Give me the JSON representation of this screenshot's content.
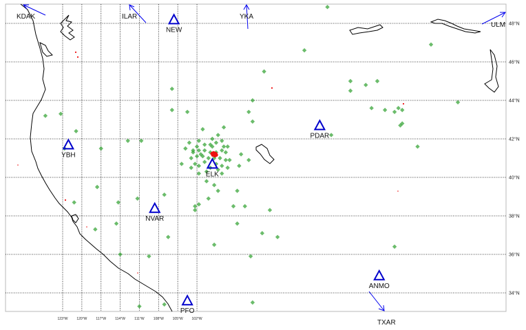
{
  "map": {
    "lat_ticks": [
      "48°N",
      "46°N",
      "44°N",
      "42°N",
      "40°N",
      "38°N",
      "36°N",
      "34°N"
    ],
    "lon_ticks": [
      "123°W",
      "120°W",
      "117°W",
      "114°W",
      "111°W",
      "108°W",
      "105°W",
      "102°W"
    ],
    "colors": {
      "grid": "#000000",
      "coastline": "#000000",
      "station_triangle": "#0000cc",
      "arrow": "#0000ee",
      "event_marker": "#2ca02c",
      "mainshock": "#ee1111"
    },
    "stations_on_map": [
      {
        "code": "NEW",
        "lon": -117.2,
        "lat": 48.2
      },
      {
        "code": "YBH",
        "lon": -122.7,
        "lat": 41.7
      },
      {
        "code": "ELK",
        "lon": -115.2,
        "lat": 40.7
      },
      {
        "code": "PDAR",
        "lon": -109.6,
        "lat": 42.7
      },
      {
        "code": "NVAR",
        "lon": -118.2,
        "lat": 38.4
      },
      {
        "code": "PFO",
        "lon": -116.5,
        "lat": 33.6
      },
      {
        "code": "ANMO",
        "lon": -106.5,
        "lat": 34.9
      }
    ],
    "offmap_stations": [
      {
        "code": "KDAK",
        "direction": "north-west"
      },
      {
        "code": "ILAR",
        "direction": "north-west"
      },
      {
        "code": "YKA",
        "direction": "north"
      },
      {
        "code": "ULM",
        "direction": "north-east"
      },
      {
        "code": "TXAR",
        "direction": "south-east"
      }
    ],
    "mainshock": {
      "lon": -115.1,
      "lat": 41.2
    },
    "events": [
      [
        -109.2,
        48.85
      ],
      [
        -110.4,
        46.6
      ],
      [
        -112.5,
        45.5
      ],
      [
        -113.1,
        44.0
      ],
      [
        -113.3,
        43.4
      ],
      [
        -113.1,
        42.9
      ],
      [
        -117.3,
        44.6
      ],
      [
        -117.3,
        43.5
      ],
      [
        -116.5,
        43.4
      ],
      [
        -115.7,
        42.5
      ],
      [
        -114.6,
        42.6
      ],
      [
        -114.9,
        42.2
      ],
      [
        -115.2,
        42.0
      ],
      [
        -116.0,
        41.6
      ],
      [
        -116.4,
        41.8
      ],
      [
        -115.9,
        41.9
      ],
      [
        -115.6,
        41.7
      ],
      [
        -115.3,
        41.7
      ],
      [
        -115.0,
        41.8
      ],
      [
        -114.7,
        41.9
      ],
      [
        -114.4,
        41.6
      ],
      [
        -116.6,
        41.5
      ],
      [
        -116.2,
        41.4
      ],
      [
        -115.9,
        41.4
      ],
      [
        -115.6,
        41.4
      ],
      [
        -115.3,
        41.3
      ],
      [
        -115.0,
        41.3
      ],
      [
        -114.7,
        41.4
      ],
      [
        -114.5,
        41.3
      ],
      [
        -116.3,
        41.0
      ],
      [
        -116.0,
        41.1
      ],
      [
        -115.7,
        41.1
      ],
      [
        -115.4,
        41.0
      ],
      [
        -115.1,
        41.0
      ],
      [
        -114.8,
        41.0
      ],
      [
        -114.5,
        40.9
      ],
      [
        -116.1,
        40.7
      ],
      [
        -115.9,
        40.6
      ],
      [
        -115.6,
        40.8
      ],
      [
        -115.3,
        40.5
      ],
      [
        -115.0,
        40.7
      ],
      [
        -114.7,
        40.6
      ],
      [
        -114.4,
        40.5
      ],
      [
        -116.3,
        40.5
      ],
      [
        -115.9,
        40.2
      ],
      [
        -115.5,
        40.3
      ],
      [
        -114.9,
        40.4
      ],
      [
        -114.7,
        40.2
      ],
      [
        -116.8,
        40.7
      ],
      [
        -116.2,
        41.3
      ],
      [
        -114.3,
        40.9
      ],
      [
        -114.6,
        41.6
      ],
      [
        -115.8,
        41.2
      ],
      [
        -115.2,
        41.6
      ],
      [
        -113.7,
        41.2
      ],
      [
        -113.3,
        40.9
      ],
      [
        -113.8,
        40.6
      ],
      [
        -115.5,
        39.8
      ],
      [
        -115.1,
        39.6
      ],
      [
        -114.9,
        39.3
      ],
      [
        -113.9,
        39.3
      ],
      [
        -114.1,
        38.5
      ],
      [
        -113.5,
        38.5
      ],
      [
        -115.4,
        38.9
      ],
      [
        -115.9,
        38.6
      ],
      [
        -116.1,
        38.5
      ],
      [
        -116.1,
        38.3
      ],
      [
        -117.7,
        39.1
      ],
      [
        -119.1,
        38.9
      ],
      [
        -120.1,
        38.7
      ],
      [
        -121.0,
        41.5
      ],
      [
        -122.3,
        42.4
      ],
      [
        -123.1,
        43.3
      ],
      [
        -122.4,
        38.7
      ],
      [
        -119.6,
        41.9
      ],
      [
        -118.9,
        41.9
      ],
      [
        -112.2,
        38.3
      ],
      [
        -113.9,
        37.6
      ],
      [
        -112.6,
        37.1
      ],
      [
        -111.8,
        36.9
      ],
      [
        -120.2,
        37.6
      ],
      [
        -120.0,
        36.0
      ],
      [
        -117.5,
        36.9
      ],
      [
        -118.5,
        35.9
      ],
      [
        -115.1,
        36.5
      ],
      [
        -113.2,
        35.9
      ],
      [
        -119.0,
        33.3
      ],
      [
        -117.7,
        33.4
      ],
      [
        -113.1,
        33.5
      ],
      [
        -108.0,
        45.0
      ],
      [
        -108.0,
        44.5
      ],
      [
        -107.2,
        44.8
      ],
      [
        -106.6,
        45.0
      ],
      [
        -106.9,
        43.6
      ],
      [
        -106.2,
        43.5
      ],
      [
        -105.7,
        43.4
      ],
      [
        -105.5,
        43.6
      ],
      [
        -105.3,
        43.5
      ],
      [
        -105.3,
        42.8
      ],
      [
        -105.4,
        42.7
      ],
      [
        -109.0,
        42.2
      ],
      [
        -104.5,
        41.6
      ],
      [
        -103.8,
        46.9
      ],
      [
        -102.4,
        43.9
      ],
      [
        -105.7,
        36.4
      ],
      [
        -123.9,
        43.2
      ],
      [
        -122.9,
        41.5
      ],
      [
        -121.2,
        39.5
      ],
      [
        -121.3,
        37.3
      ]
    ]
  }
}
